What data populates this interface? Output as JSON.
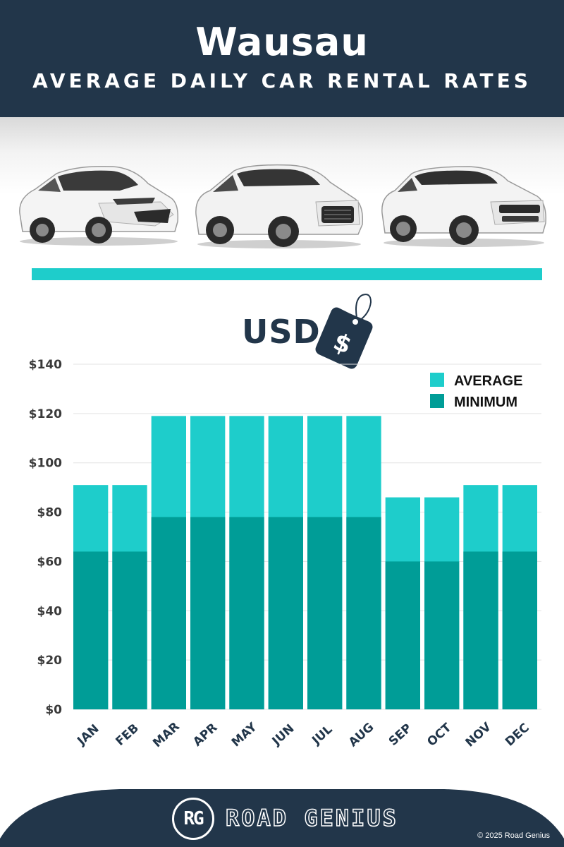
{
  "header": {
    "city": "Wausau",
    "subtitle": "AVERAGE DAILY CAR RENTAL RATES"
  },
  "currency_label": "USD",
  "tag_symbol": "$",
  "colors": {
    "navy": "#22364a",
    "average": "#1ecdcb",
    "minimum": "#009d97",
    "axis_text": "#333333"
  },
  "chart_data": {
    "type": "bar",
    "stacking": "overlay",
    "categories": [
      "JAN",
      "FEB",
      "MAR",
      "APR",
      "MAY",
      "JUN",
      "JUL",
      "AUG",
      "SEP",
      "OCT",
      "NOV",
      "DEC"
    ],
    "series": [
      {
        "name": "AVERAGE",
        "color": "#1ecdcb",
        "values": [
          91,
          91,
          119,
          119,
          119,
          119,
          119,
          119,
          86,
          86,
          91,
          91
        ]
      },
      {
        "name": "MINIMUM",
        "color": "#009d97",
        "values": [
          64,
          64,
          78,
          78,
          78,
          78,
          78,
          78,
          60,
          60,
          64,
          64
        ]
      }
    ],
    "y_ticks": [
      "$0",
      "$20",
      "$40",
      "$60",
      "$80",
      "$100",
      "$120",
      "$140"
    ],
    "ylim": [
      0,
      140
    ],
    "grid": true,
    "legend_position": "top-right"
  },
  "footer": {
    "brand_initials": "RG",
    "brand_name": "ROAD GENIUS",
    "copyright": "© 2025 Road Genius"
  }
}
